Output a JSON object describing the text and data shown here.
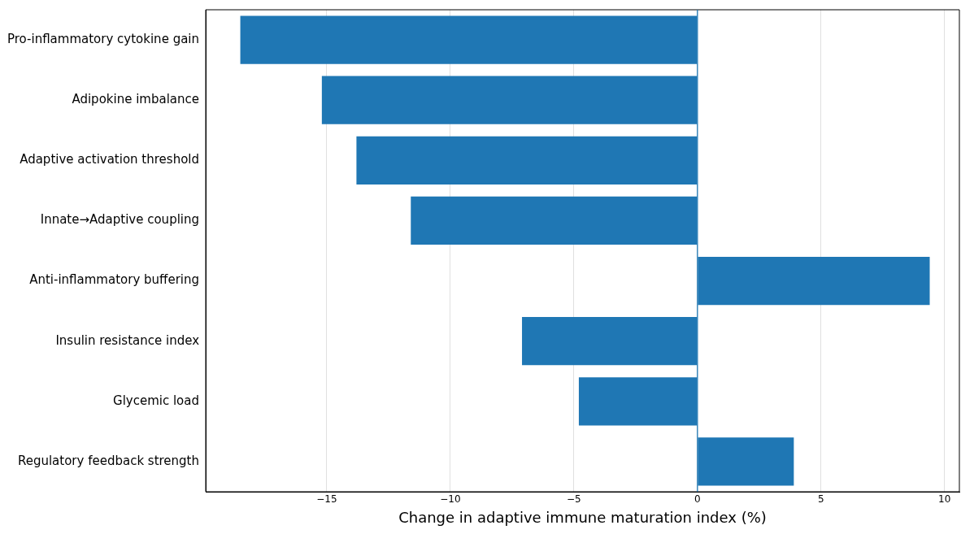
{
  "chart_data": {
    "type": "bar",
    "orientation": "horizontal",
    "xlabel": "Change in adaptive immune maturation index (%)",
    "categories": [
      "Pro-inflammatory cytokine gain",
      "Adipokine imbalance",
      "Adaptive activation threshold",
      "Innate→Adaptive coupling",
      "Anti-inflammatory buffering",
      "Insulin resistance index",
      "Glycemic load",
      "Regulatory feedback strength"
    ],
    "values": [
      -18.5,
      -15.2,
      -13.8,
      -11.6,
      9.4,
      -7.1,
      -4.8,
      3.9
    ],
    "color": "#1f77b4",
    "xlim": [
      -19.9,
      10.6
    ],
    "xticks": [
      {
        "value": -15,
        "label": "−15"
      },
      {
        "value": -10,
        "label": "−10"
      },
      {
        "value": -5,
        "label": "−5"
      },
      0,
      5,
      10
    ],
    "ref_lines": [
      {
        "axis": "x",
        "value": 0,
        "color": "#1f77b4"
      }
    ],
    "grid": "x",
    "legend": false
  }
}
